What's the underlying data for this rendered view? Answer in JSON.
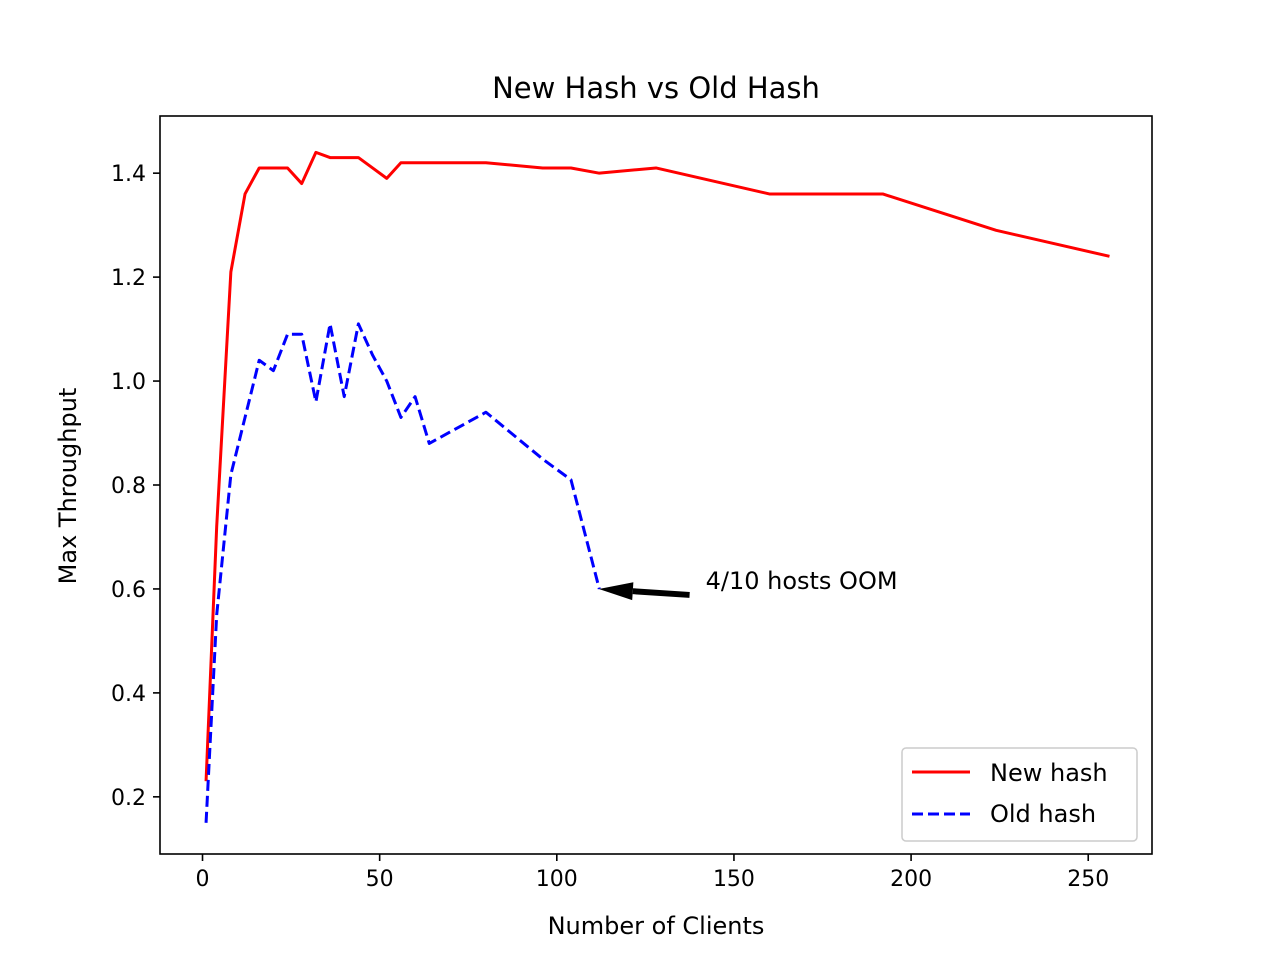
{
  "chart_data": {
    "type": "line",
    "title": "New Hash vs Old Hash",
    "xlabel": "Number of Clients",
    "ylabel": "Max Throughput",
    "xlim": [
      -12,
      268
    ],
    "ylim": [
      0.09,
      1.51
    ],
    "xticks": [
      0,
      50,
      100,
      150,
      200,
      250
    ],
    "yticks": [
      0.2,
      0.4,
      0.6,
      0.8,
      1.0,
      1.2,
      1.4
    ],
    "grid": false,
    "legend_position": "lower-right",
    "series": [
      {
        "name": "New hash",
        "color": "#ff0000",
        "style": "solid",
        "x": [
          1,
          4,
          8,
          12,
          16,
          20,
          24,
          28,
          32,
          36,
          40,
          44,
          48,
          52,
          56,
          60,
          64,
          80,
          96,
          104,
          112,
          128,
          160,
          192,
          224,
          256
        ],
        "y": [
          0.23,
          0.72,
          1.21,
          1.36,
          1.41,
          1.41,
          1.41,
          1.38,
          1.44,
          1.43,
          1.43,
          1.43,
          1.41,
          1.39,
          1.42,
          1.42,
          1.42,
          1.42,
          1.41,
          1.41,
          1.4,
          1.41,
          1.36,
          1.36,
          1.29,
          1.24
        ]
      },
      {
        "name": "Old hash",
        "color": "#0000ff",
        "style": "dashed",
        "x": [
          1,
          4,
          8,
          12,
          16,
          20,
          24,
          28,
          32,
          36,
          40,
          44,
          48,
          52,
          56,
          60,
          64,
          80,
          96,
          104,
          112
        ],
        "y": [
          0.15,
          0.55,
          0.82,
          0.93,
          1.04,
          1.02,
          1.09,
          1.09,
          0.96,
          1.11,
          0.97,
          1.11,
          1.05,
          1.0,
          0.93,
          0.97,
          0.88,
          0.94,
          0.85,
          0.81,
          0.6
        ]
      }
    ],
    "annotations": [
      {
        "text": "4/10 hosts OOM",
        "point": [
          113,
          0.6
        ],
        "text_position": [
          142,
          0.6
        ]
      }
    ]
  }
}
